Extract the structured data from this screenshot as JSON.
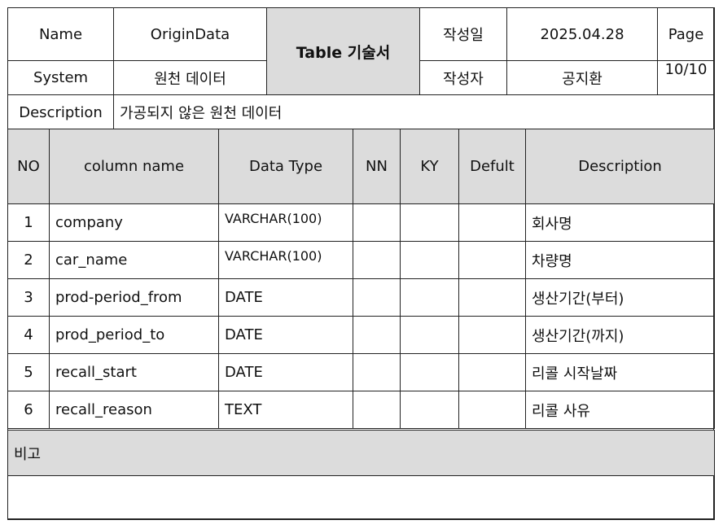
{
  "header": {
    "name_label": "Name",
    "name_value": "OriginData",
    "doc_title": "Table 기술서",
    "created_date_label": "작성일",
    "created_date": "2025.04.28",
    "page_label": "Page",
    "page_number": "10/10",
    "system_label": "System",
    "system_value": "원천 데이터",
    "author_label": "작성자",
    "author": "공지환",
    "description_label": "Description",
    "description_value": "가공되지 않은 원천 데이터"
  },
  "columns": {
    "no": "NO",
    "column_name": "column name",
    "data_type": "Data Type",
    "nn": "NN",
    "ky": "KY",
    "default": "Defult",
    "description": "Description"
  },
  "rows": [
    {
      "no": "1",
      "column_name": "company",
      "data_type": "VARCHAR(100)",
      "nn": "",
      "ky": "",
      "default": "",
      "description": "회사명"
    },
    {
      "no": "2",
      "column_name": "car_name",
      "data_type": "VARCHAR(100)",
      "nn": "",
      "ky": "",
      "default": "",
      "description": "차량명"
    },
    {
      "no": "3",
      "column_name": "prod-period_from",
      "data_type": "DATE",
      "nn": "",
      "ky": "",
      "default": "",
      "description": "생산기간(부터)"
    },
    {
      "no": "4",
      "column_name": "prod_period_to",
      "data_type": "DATE",
      "nn": "",
      "ky": "",
      "default": "",
      "description": "생산기간(까지)"
    },
    {
      "no": "5",
      "column_name": "recall_start",
      "data_type": "DATE",
      "nn": "",
      "ky": "",
      "default": "",
      "description": "리콜 시작날짜"
    },
    {
      "no": "6",
      "column_name": "recall_reason",
      "data_type": "TEXT",
      "nn": "",
      "ky": "",
      "default": "",
      "description": "리콜 사유"
    }
  ],
  "remarks": {
    "label": "비고",
    "content": ""
  }
}
